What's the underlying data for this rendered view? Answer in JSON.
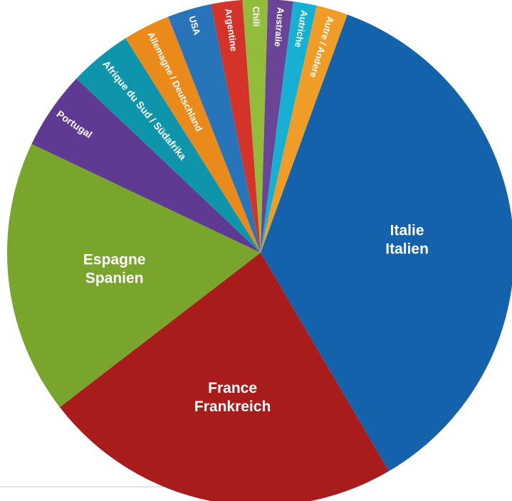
{
  "chart_data": {
    "type": "pie",
    "title": "",
    "slices": [
      {
        "lines": [
          "Italie",
          "Italien"
        ],
        "value": 36.0,
        "color": "#1461ac"
      },
      {
        "lines": [
          "France",
          "Frankreich"
        ],
        "value": 23.0,
        "color": "#a81c1c"
      },
      {
        "lines": [
          "Espagne",
          "Spanien"
        ],
        "value": 17.5,
        "color": "#79a52c"
      },
      {
        "lines": [
          "Portugal"
        ],
        "value": 5.0,
        "color": "#5f3a92"
      },
      {
        "lines": [
          "Afrique du Sud / Südafrika"
        ],
        "value": 4.0,
        "color": "#0f95ab"
      },
      {
        "lines": [
          "Allemagne / Deutschland"
        ],
        "value": 3.0,
        "color": "#e98a1a"
      },
      {
        "lines": [
          "USA"
        ],
        "value": 2.8,
        "color": "#2874b8"
      },
      {
        "lines": [
          "Argentine"
        ],
        "value": 2.0,
        "color": "#d4332a"
      },
      {
        "lines": [
          "Chili"
        ],
        "value": 1.6,
        "color": "#93bb3c"
      },
      {
        "lines": [
          "Australie"
        ],
        "value": 1.6,
        "color": "#6a4497"
      },
      {
        "lines": [
          "Autriche"
        ],
        "value": 1.5,
        "color": "#17b0d2"
      },
      {
        "lines": [
          "Autre / Andere"
        ],
        "value": 2.0,
        "color": "#ef9d27"
      }
    ]
  }
}
